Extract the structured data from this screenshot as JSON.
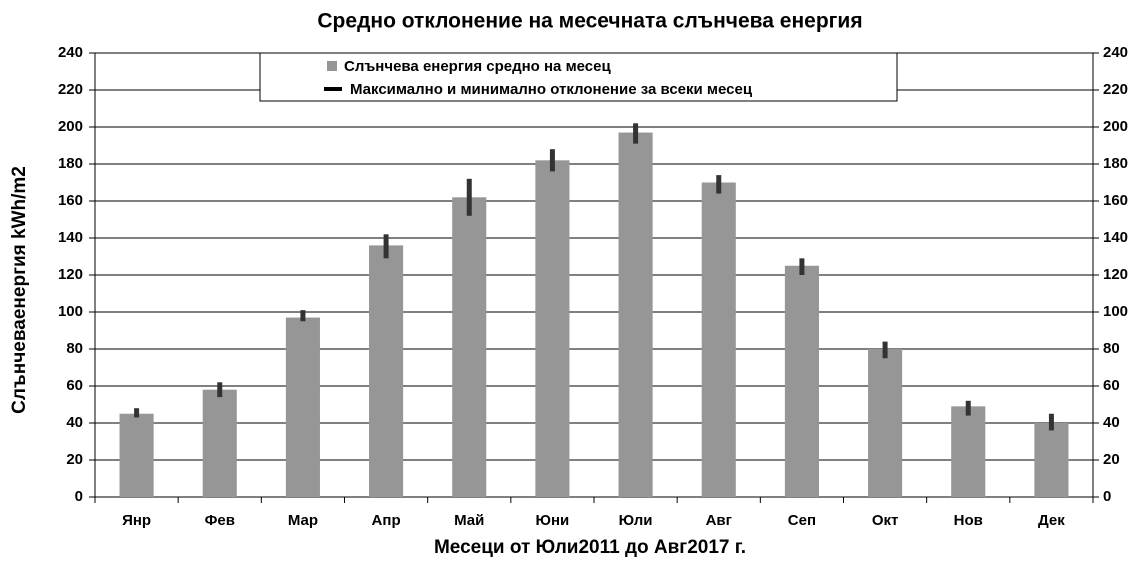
{
  "chart_data": {
    "type": "bar",
    "title": "Средно отклонение на месечната слънчева енергия",
    "x_label": "Месеци от Юли2011 до Авг2017 г.",
    "y_label": "Слънчеваенергия  kWh/m2",
    "categories": [
      "Янр",
      "Фев",
      "Мар",
      "Апр",
      "Май",
      "Юни",
      "Юли",
      "Авг",
      "Сеп",
      "Окт",
      "Нов",
      "Дек"
    ],
    "series": [
      {
        "name": "Слънчева енергия средно на месец",
        "color": "#969696",
        "values": [
          45,
          58,
          97,
          136,
          162,
          182,
          197,
          170,
          125,
          80,
          49,
          40
        ]
      },
      {
        "name": "Максимално и минимално отклонение за всеки месец",
        "color": "#333333",
        "high": [
          48,
          62,
          101,
          142,
          172,
          188,
          202,
          174,
          129,
          84,
          52,
          45
        ],
        "low": [
          43,
          54,
          95,
          129,
          152,
          176,
          191,
          164,
          120,
          75,
          44,
          36
        ]
      }
    ],
    "ylim": [
      0,
      240
    ],
    "yticks": [
      0,
      20,
      40,
      60,
      80,
      100,
      120,
      140,
      160,
      180,
      200,
      220,
      240
    ],
    "y2lim": [
      0,
      240
    ],
    "y2ticks": [
      0,
      20,
      40,
      60,
      80,
      100,
      120,
      140,
      160,
      180,
      200,
      220,
      240
    ],
    "grid": true
  }
}
